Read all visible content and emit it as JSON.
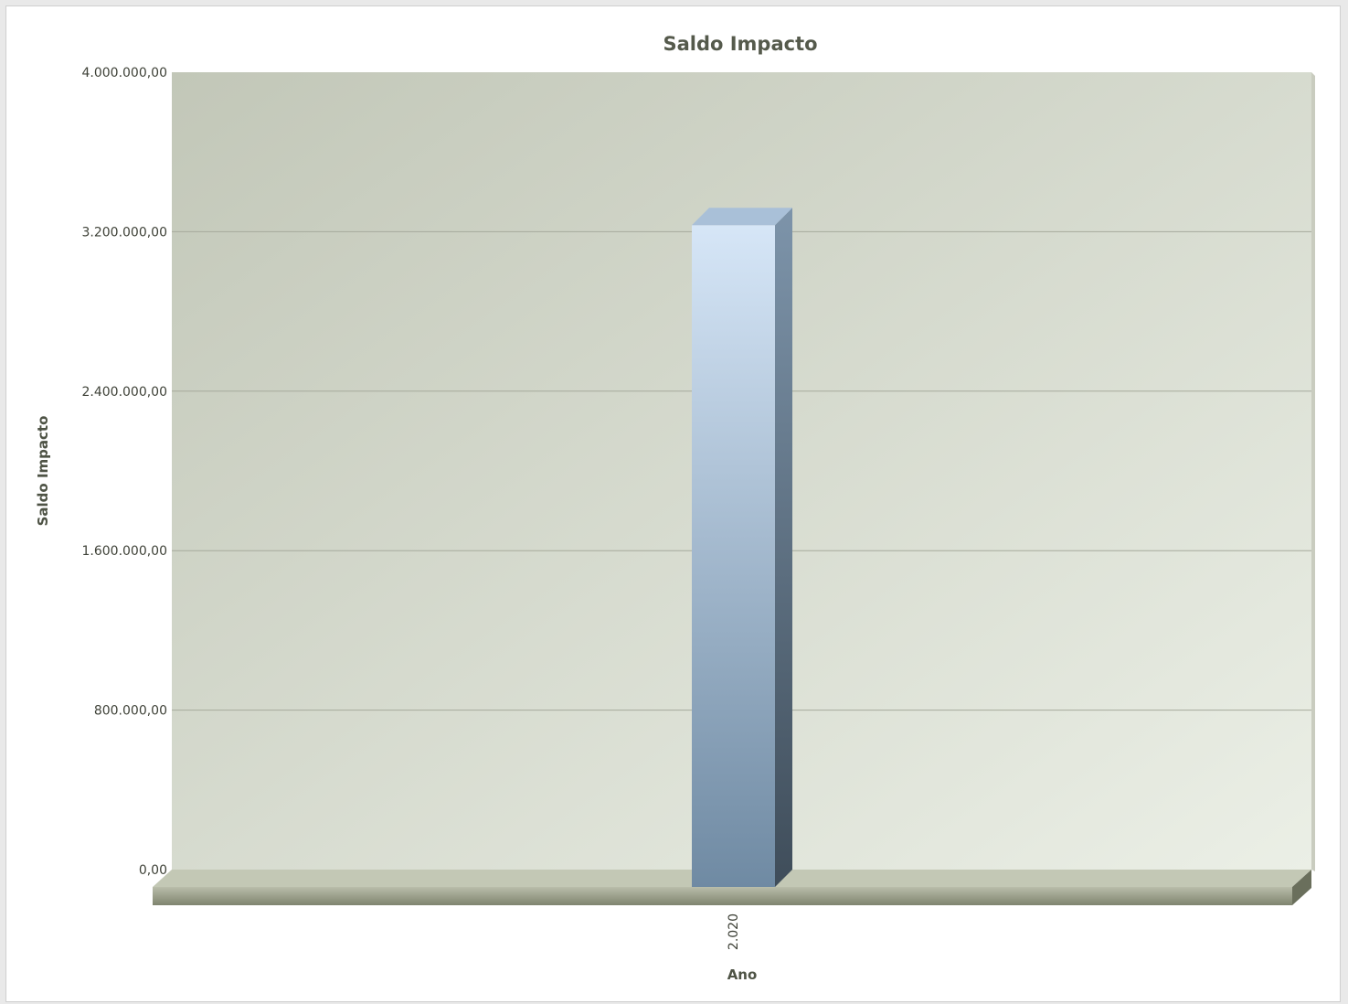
{
  "chart_data": {
    "type": "bar",
    "title": "Saldo Impacto",
    "xlabel": "Ano",
    "ylabel": "Saldo Impacto",
    "categories": [
      "2.020"
    ],
    "series": [
      {
        "values": [
          3320000
        ]
      }
    ],
    "ylim": [
      0,
      4000000
    ],
    "yticks": [
      0,
      800000,
      1600000,
      2400000,
      3200000,
      4000000
    ],
    "ytick_labels": [
      "0,00",
      "800.000,00",
      "1.600.000,00",
      "2.400.000,00",
      "3.200.000,00",
      "4.000.000,00"
    ],
    "grid": true,
    "legend": "none",
    "colors": {
      "bar_top": "#d6e6f7",
      "bar_bottom": "#6f8aa3",
      "bar_side": "#4c6075",
      "plot_bg_start": "#c2c7b8",
      "plot_bg_end": "#ebefe6",
      "gridline": "#a6aa9c",
      "floor": "#9ea38f"
    }
  }
}
